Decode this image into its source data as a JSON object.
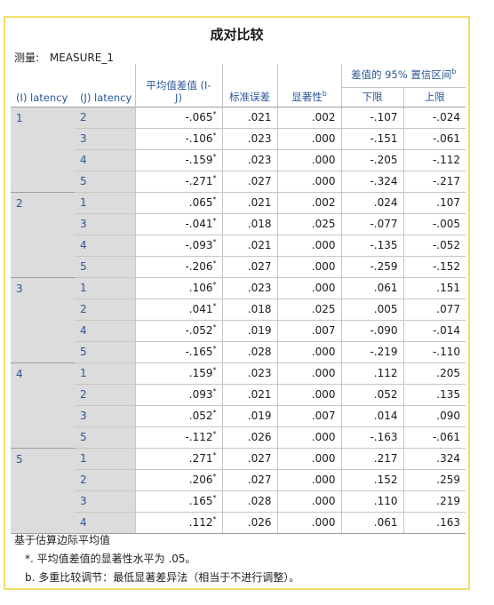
{
  "title": "成对比较",
  "measure": {
    "label": "测量:",
    "value": "MEASURE_1"
  },
  "headers": {
    "i_latency": "(I) latency",
    "j_latency": "(J) latency",
    "mean_diff": "平均值差值 (I-J)",
    "std_err": "标准误差",
    "sig": "显著性",
    "sig_sup": "b",
    "ci_group": "差值的 95% 置信区间",
    "ci_sup": "b",
    "lower": "下限",
    "upper": "上限"
  },
  "groups": [
    {
      "i": "1",
      "rows": [
        {
          "j": "2",
          "md": "-.065",
          "star": "*",
          "se": ".021",
          "sig": ".002",
          "lo": "-.107",
          "hi": "-.024"
        },
        {
          "j": "3",
          "md": "-.106",
          "star": "*",
          "se": ".023",
          "sig": ".000",
          "lo": "-.151",
          "hi": "-.061"
        },
        {
          "j": "4",
          "md": "-.159",
          "star": "*",
          "se": ".023",
          "sig": ".000",
          "lo": "-.205",
          "hi": "-.112"
        },
        {
          "j": "5",
          "md": "-.271",
          "star": "*",
          "se": ".027",
          "sig": ".000",
          "lo": "-.324",
          "hi": "-.217"
        }
      ]
    },
    {
      "i": "2",
      "rows": [
        {
          "j": "1",
          "md": ".065",
          "star": "*",
          "se": ".021",
          "sig": ".002",
          "lo": ".024",
          "hi": ".107"
        },
        {
          "j": "3",
          "md": "-.041",
          "star": "*",
          "se": ".018",
          "sig": ".025",
          "lo": "-.077",
          "hi": "-.005"
        },
        {
          "j": "4",
          "md": "-.093",
          "star": "*",
          "se": ".021",
          "sig": ".000",
          "lo": "-.135",
          "hi": "-.052"
        },
        {
          "j": "5",
          "md": "-.206",
          "star": "*",
          "se": ".027",
          "sig": ".000",
          "lo": "-.259",
          "hi": "-.152"
        }
      ]
    },
    {
      "i": "3",
      "rows": [
        {
          "j": "1",
          "md": ".106",
          "star": "*",
          "se": ".023",
          "sig": ".000",
          "lo": ".061",
          "hi": ".151"
        },
        {
          "j": "2",
          "md": ".041",
          "star": "*",
          "se": ".018",
          "sig": ".025",
          "lo": ".005",
          "hi": ".077"
        },
        {
          "j": "4",
          "md": "-.052",
          "star": "*",
          "se": ".019",
          "sig": ".007",
          "lo": "-.090",
          "hi": "-.014"
        },
        {
          "j": "5",
          "md": "-.165",
          "star": "*",
          "se": ".028",
          "sig": ".000",
          "lo": "-.219",
          "hi": "-.110"
        }
      ]
    },
    {
      "i": "4",
      "rows": [
        {
          "j": "1",
          "md": ".159",
          "star": "*",
          "se": ".023",
          "sig": ".000",
          "lo": ".112",
          "hi": ".205"
        },
        {
          "j": "2",
          "md": ".093",
          "star": "*",
          "se": ".021",
          "sig": ".000",
          "lo": ".052",
          "hi": ".135"
        },
        {
          "j": "3",
          "md": ".052",
          "star": "*",
          "se": ".019",
          "sig": ".007",
          "lo": ".014",
          "hi": ".090"
        },
        {
          "j": "5",
          "md": "-.112",
          "star": "*",
          "se": ".026",
          "sig": ".000",
          "lo": "-.163",
          "hi": "-.061"
        }
      ]
    },
    {
      "i": "5",
      "rows": [
        {
          "j": "1",
          "md": ".271",
          "star": "*",
          "se": ".027",
          "sig": ".000",
          "lo": ".217",
          "hi": ".324"
        },
        {
          "j": "2",
          "md": ".206",
          "star": "*",
          "se": ".027",
          "sig": ".000",
          "lo": ".152",
          "hi": ".259"
        },
        {
          "j": "3",
          "md": ".165",
          "star": "*",
          "se": ".028",
          "sig": ".000",
          "lo": ".110",
          "hi": ".219"
        },
        {
          "j": "4",
          "md": ".112",
          "star": "*",
          "se": ".026",
          "sig": ".000",
          "lo": ".061",
          "hi": ".163"
        }
      ]
    }
  ],
  "notes": {
    "basis": "基于估算边际平均值",
    "star_note": "*. 平均值差值的显著性水平为 .05。",
    "b_note": "b. 多重比较调节：最低显著差异法（相当于不进行调整）。"
  },
  "colors": {
    "frame_border": "#f2dd6b",
    "label_blue": "#2b5797",
    "row_header_bg": "#dcdcdc"
  }
}
